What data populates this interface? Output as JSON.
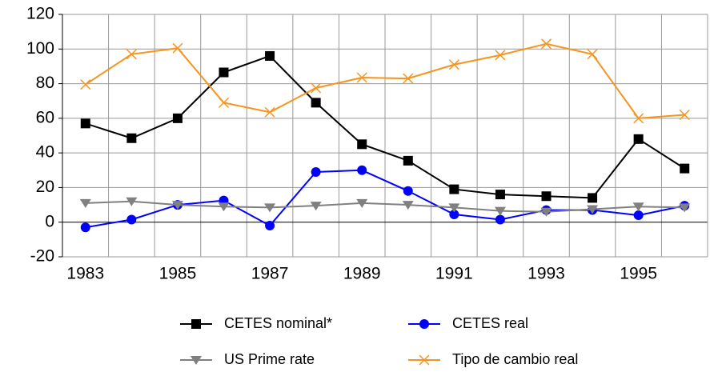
{
  "chart_data": {
    "type": "line",
    "categories": [
      "1983",
      null,
      "1985",
      null,
      "1987",
      null,
      "1989",
      null,
      "1991",
      null,
      "1993",
      null,
      "1995",
      null
    ],
    "series": [
      {
        "name": "CETES nominal*",
        "color": "#000000",
        "marker": "square",
        "values": [
          57,
          48.5,
          60,
          86.5,
          96,
          69,
          45,
          35.5,
          19,
          16,
          15,
          14,
          48,
          31
        ]
      },
      {
        "name": "CETES real",
        "color": "#0000ff",
        "marker": "circle",
        "values": [
          -3,
          1.5,
          10,
          12.5,
          -2,
          29,
          30,
          18,
          4.5,
          1.5,
          7,
          7,
          4,
          9.5
        ]
      },
      {
        "name": "US Prime rate",
        "color": "#808080",
        "marker": "triangle-down",
        "values": [
          11,
          12,
          10,
          9,
          8.5,
          9.5,
          11,
          10,
          8.5,
          6.5,
          6,
          7.5,
          9,
          8.5
        ]
      },
      {
        "name": "Tipo de cambio real",
        "color": "#f7941d",
        "marker": "x",
        "values": [
          79.5,
          97,
          100.5,
          69,
          63.5,
          77.5,
          83.5,
          83,
          91,
          96.5,
          103,
          97,
          60,
          62
        ]
      }
    ],
    "ylim": [
      -20,
      120
    ],
    "yticks": [
      -20,
      0,
      20,
      40,
      60,
      80,
      100,
      120
    ],
    "grid": true
  }
}
